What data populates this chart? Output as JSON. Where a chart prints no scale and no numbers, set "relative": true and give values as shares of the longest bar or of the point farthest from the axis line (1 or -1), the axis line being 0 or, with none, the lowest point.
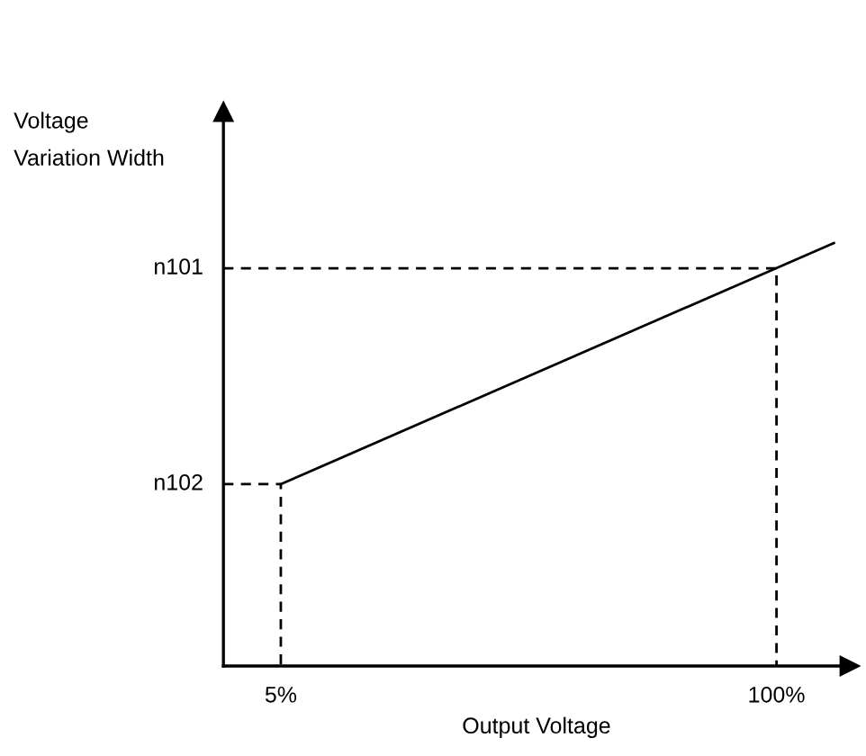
{
  "chart_data": {
    "type": "line",
    "relative": true,
    "xlabel": "Output Voltage",
    "ylabel": "Voltage\nVariation Width",
    "xlim": [
      -6,
      114
    ],
    "xticks": [
      {
        "value": 5,
        "label": "5%"
      },
      {
        "value": 100,
        "label": "100%"
      }
    ],
    "annotations": [
      {
        "text": "n101",
        "x": -6,
        "y": 0.94
      },
      {
        "text": "n102",
        "x": -6,
        "y": 0.43
      }
    ],
    "grid": false,
    "legend": false,
    "marker": "none",
    "series": [
      {
        "color": "#000000",
        "line_style": "solid",
        "x": [
          5,
          111
        ],
        "values": [
          0.43,
          1
        ]
      },
      {
        "color": "#000000",
        "line_style": "dashed",
        "x": [
          -6,
          5,
          5
        ],
        "values": [
          0.43,
          0.43,
          0
        ]
      },
      {
        "color": "#000000",
        "line_style": "dashed",
        "x": [
          -6,
          100,
          100
        ],
        "values": [
          0.94,
          0.94,
          0
        ]
      }
    ]
  }
}
